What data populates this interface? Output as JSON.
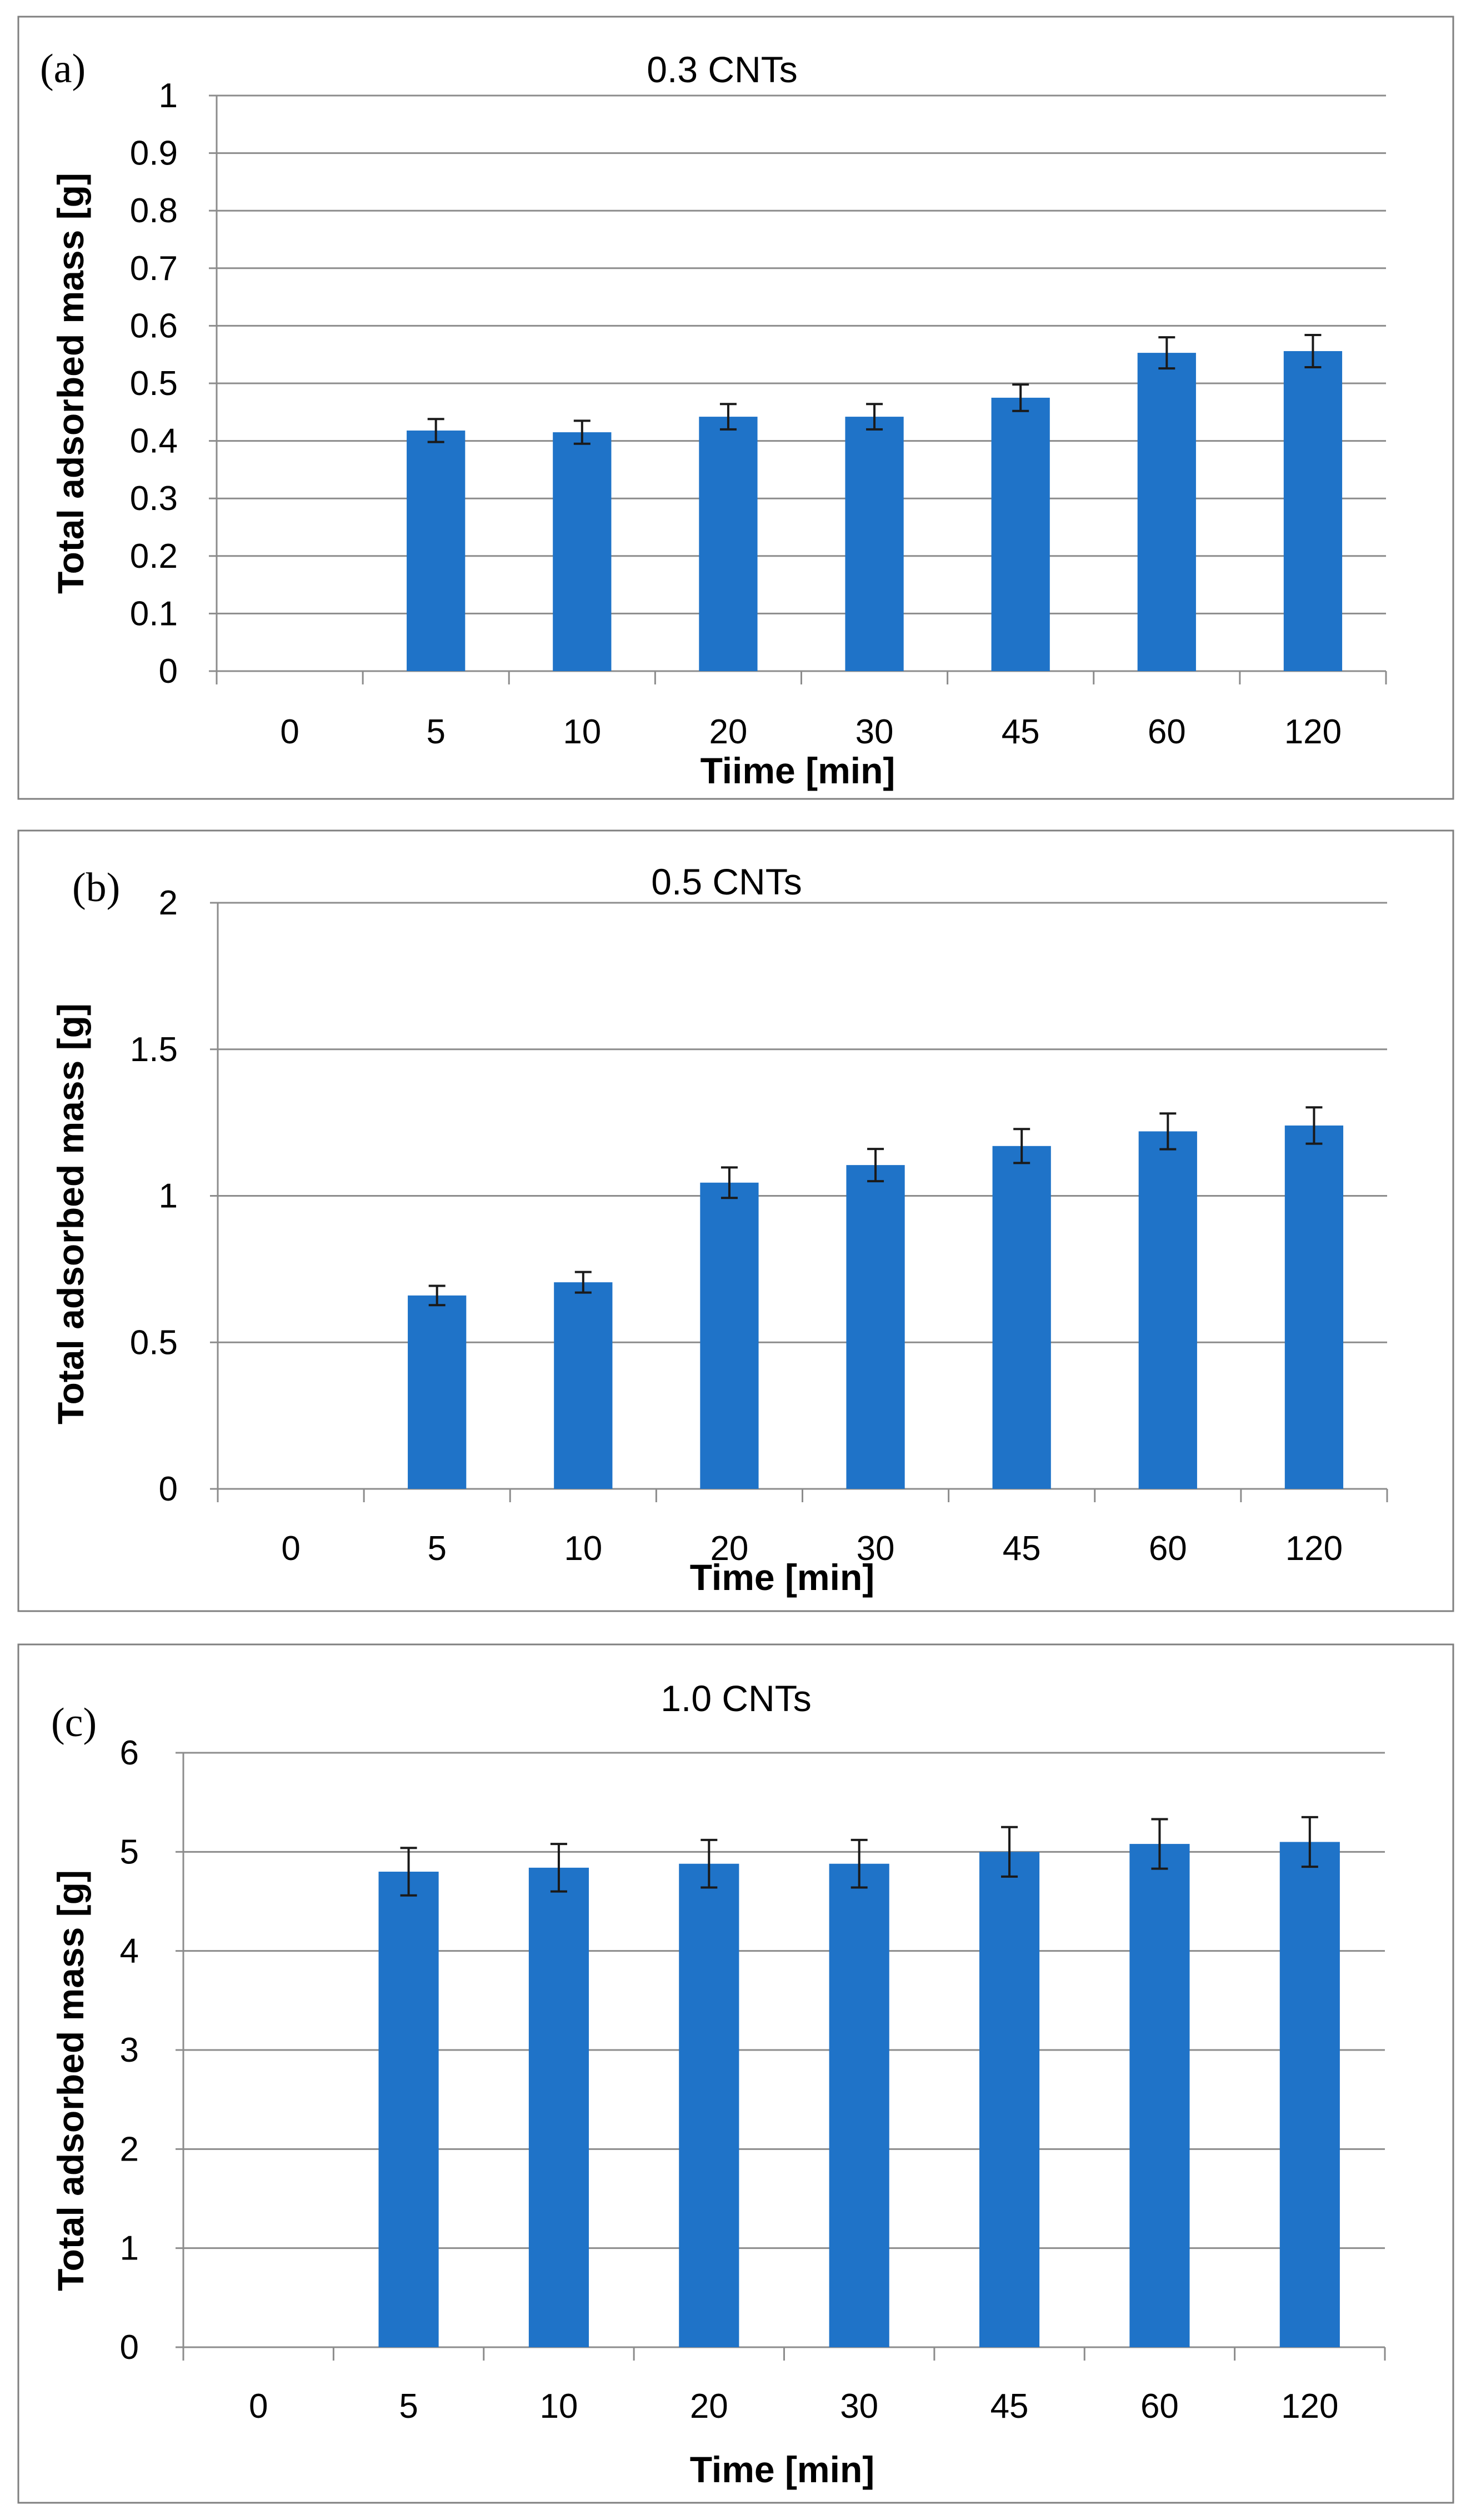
{
  "figure": {
    "panels": [
      {
        "letter": "(a)",
        "chart_title": "0.3 CNTs",
        "ylabel": "Total adsorbed mass [g]",
        "xlabel": "Tiime [min]",
        "ylim": [
          0,
          1
        ],
        "yticks": [
          "0",
          "0.1",
          "0.2",
          "0.3",
          "0.4",
          "0.5",
          "0.6",
          "0.7",
          "0.8",
          "0.9",
          "1"
        ]
      },
      {
        "letter": "(b)",
        "chart_title": "0.5  CNTs",
        "ylabel": "Total adsorbed mass [g]",
        "xlabel": "Time [min]",
        "ylim": [
          0,
          2
        ],
        "yticks": [
          "0",
          "0.5",
          "1",
          "1.5",
          "2"
        ]
      },
      {
        "letter": "(c)",
        "chart_title": "1.0 CNTs",
        "ylabel": "Total  adsorbed mass [g]",
        "xlabel": "Time [min]",
        "ylim": [
          0,
          6
        ],
        "yticks": [
          "0",
          "1",
          "2",
          "3",
          "4",
          "5",
          "6"
        ]
      }
    ]
  },
  "chart_data": [
    {
      "type": "bar",
      "title": "0.3 CNTs",
      "xlabel": "Tiime [min]",
      "ylabel": "Total adsorbed mass [g]",
      "ylim": [
        0,
        1
      ],
      "grid": true,
      "categories": [
        "0",
        "5",
        "10",
        "20",
        "30",
        "45",
        "60",
        "120"
      ],
      "values": [
        0,
        0.418,
        0.415,
        0.442,
        0.442,
        0.475,
        0.553,
        0.556
      ],
      "errors": [
        0,
        0.02,
        0.02,
        0.022,
        0.022,
        0.023,
        0.027,
        0.028
      ],
      "color": "#1f73c8"
    },
    {
      "type": "bar",
      "title": "0.5  CNTs",
      "xlabel": "Time [min]",
      "ylabel": "Total adsorbed mass [g]",
      "ylim": [
        0,
        2
      ],
      "grid": true,
      "categories": [
        "0",
        "5",
        "10",
        "20",
        "30",
        "45",
        "60",
        "120"
      ],
      "values": [
        0,
        0.66,
        0.705,
        1.045,
        1.105,
        1.17,
        1.22,
        1.24
      ],
      "errors": [
        0,
        0.033,
        0.035,
        0.052,
        0.055,
        0.058,
        0.061,
        0.062
      ],
      "color": "#1f73c8"
    },
    {
      "type": "bar",
      "title": "1.0 CNTs",
      "xlabel": "Time [min]",
      "ylabel": "Total  adsorbed mass [g]",
      "ylim": [
        0,
        6
      ],
      "grid": true,
      "categories": [
        "0",
        "5",
        "10",
        "20",
        "30",
        "45",
        "60",
        "120"
      ],
      "values": [
        0,
        4.8,
        4.84,
        4.88,
        4.88,
        5.0,
        5.08,
        5.1
      ],
      "errors": [
        0,
        0.24,
        0.24,
        0.24,
        0.24,
        0.25,
        0.25,
        0.25
      ],
      "color": "#1f73c8"
    }
  ]
}
